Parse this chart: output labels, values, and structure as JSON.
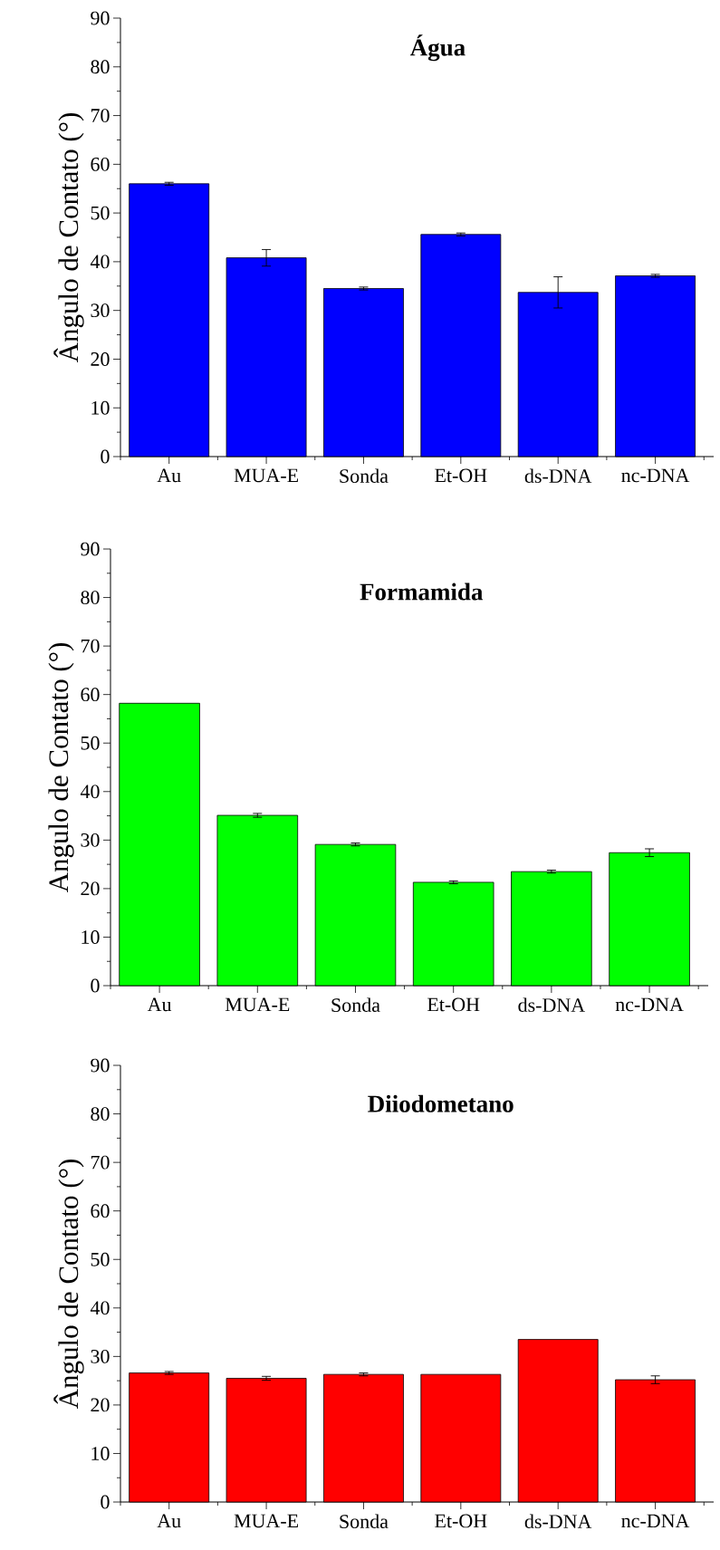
{
  "chart_data": [
    {
      "type": "bar",
      "title": "Água",
      "ylabel": "Ângulo de Contato (°)",
      "categories": [
        "Au",
        "MUA-E",
        "Sonda",
        "Et-OH",
        "ds-DNA",
        "nc-DNA"
      ],
      "values": [
        56.0,
        40.8,
        34.5,
        45.6,
        33.7,
        37.1
      ],
      "errors": [
        0.3,
        1.7,
        0.3,
        0.3,
        3.2,
        0.3
      ],
      "color": "#0000ff",
      "ylim": [
        0,
        90
      ],
      "yticks": [
        0,
        10,
        20,
        30,
        40,
        50,
        60,
        70,
        80,
        90
      ]
    },
    {
      "type": "bar",
      "title": "Formamida",
      "ylabel": "Angulo de Contato (°)",
      "categories": [
        "Au",
        "MUA-E",
        "Sonda",
        "Et-OH",
        "ds-DNA",
        "nc-DNA"
      ],
      "values": [
        58.2,
        35.1,
        29.1,
        21.3,
        23.5,
        27.4
      ],
      "errors": [
        null,
        0.4,
        0.3,
        0.3,
        0.3,
        0.8
      ],
      "color": "#00ff00",
      "ylim": [
        0,
        90
      ],
      "yticks": [
        0,
        10,
        20,
        30,
        40,
        50,
        60,
        70,
        80,
        90
      ]
    },
    {
      "type": "bar",
      "title": "Diiodometano",
      "ylabel": "Ângulo de Contato (°)",
      "categories": [
        "Au",
        "MUA-E",
        "Sonda",
        "Et-OH",
        "ds-DNA",
        "nc-DNA"
      ],
      "values": [
        26.6,
        25.5,
        26.3,
        26.3,
        33.5,
        25.2
      ],
      "errors": [
        0.3,
        0.4,
        0.3,
        null,
        null,
        0.8
      ],
      "color": "#ff0000",
      "ylim": [
        0,
        90
      ],
      "yticks": [
        0,
        10,
        20,
        30,
        40,
        50,
        60,
        70,
        80,
        90
      ]
    }
  ]
}
